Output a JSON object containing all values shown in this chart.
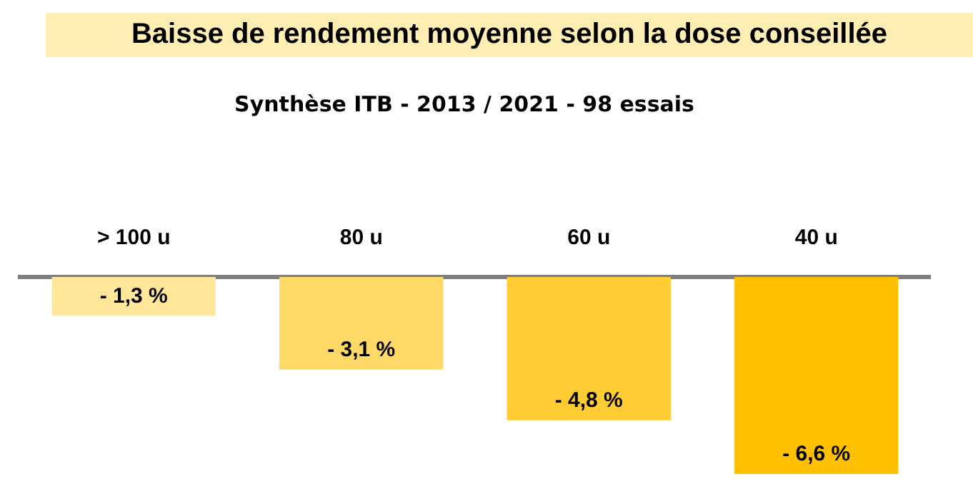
{
  "chart_data": {
    "type": "bar",
    "title": "Baisse de rendement moyenne selon la dose conseillée",
    "subtitle": "Synthèse ITB - 2013 / 2021 - 98 essais",
    "categories": [
      "> 100 u",
      "80 u",
      "60 u",
      "40 u"
    ],
    "values": [
      -1.3,
      -3.1,
      -4.8,
      -6.6
    ],
    "colors": [
      "#ffe699",
      "#ffd966",
      "#ffcc33",
      "#ffc000"
    ],
    "value_labels": [
      "- 1,3 %",
      "- 3,1 %",
      "- 4,8 %",
      "- 6,6 %"
    ],
    "ylim": [
      -6.6,
      0
    ],
    "grid": false,
    "legend": false
  }
}
